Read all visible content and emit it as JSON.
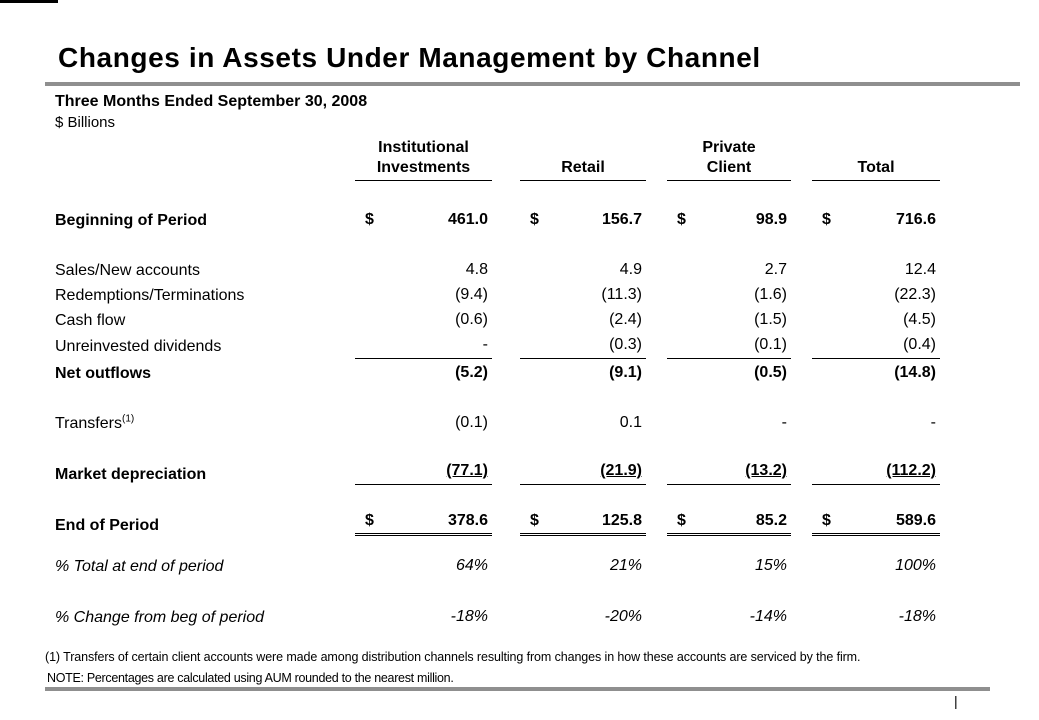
{
  "slide": {
    "title": "Changes in Assets Under Management by Channel",
    "period": "Three Months Ended September 30, 2008",
    "units": "$ Billions",
    "page_marker": "|",
    "colors": {
      "rule_gray": "#8f8f8f",
      "text": "#000000",
      "background": "#ffffff"
    }
  },
  "table": {
    "currency_symbol": "$",
    "columns": [
      [
        "Institutional",
        "Investments"
      ],
      [
        "",
        "Retail"
      ],
      [
        "Private",
        "Client"
      ],
      [
        "",
        "Total"
      ]
    ],
    "rows": [
      {
        "label": "Beginning of Period",
        "values": [
          "461.0",
          "156.7",
          "98.9",
          "716.6"
        ]
      },
      {
        "label": "Sales/New accounts",
        "values": [
          "4.8",
          "4.9",
          "2.7",
          "12.4"
        ]
      },
      {
        "label": "Redemptions/Terminations",
        "values": [
          "(9.4)",
          "(11.3)",
          "(1.6)",
          "(22.3)"
        ]
      },
      {
        "label": "Cash flow",
        "values": [
          "(0.6)",
          "(2.4)",
          "(1.5)",
          "(4.5)"
        ]
      },
      {
        "label": "Unreinvested dividends",
        "values": [
          "-",
          "(0.3)",
          "(0.1)",
          "(0.4)"
        ]
      },
      {
        "label": "Net outflows",
        "values": [
          "(5.2)",
          "(9.1)",
          "(0.5)",
          "(14.8)"
        ]
      },
      {
        "label": "Transfers",
        "footnote_ref": "(1)",
        "values": [
          "(0.1)",
          "0.1",
          "-",
          "-"
        ]
      },
      {
        "label": "Market depreciation",
        "values": [
          "(77.1)",
          "(21.9)",
          "(13.2)",
          "(112.2)"
        ]
      },
      {
        "label": "End of Period",
        "values": [
          "378.6",
          "125.8",
          "85.2",
          "589.6"
        ]
      },
      {
        "label": "% Total at end of period",
        "values": [
          "64%",
          "21%",
          "15%",
          "100%"
        ]
      },
      {
        "label": "% Change from beg of period",
        "values": [
          "-18%",
          "-20%",
          "-14%",
          "-18%"
        ]
      }
    ]
  },
  "footnotes": [
    "(1) Transfers of certain client accounts were made among distribution channels resulting from changes in how these accounts are serviced by the firm.",
    "NOTE: Percentages are calculated using AUM rounded to the nearest million."
  ]
}
